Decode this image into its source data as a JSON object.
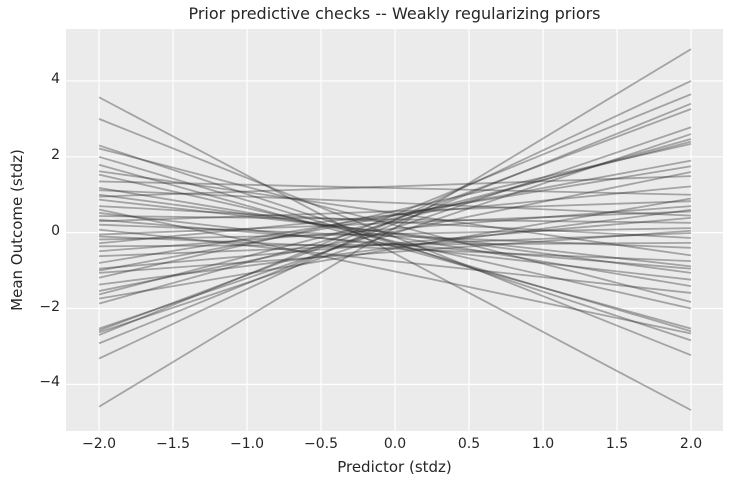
{
  "chart_data": {
    "type": "line",
    "title": "Prior predictive checks -- Weakly regularizing priors",
    "xlabel": "Predictor (stdz)",
    "ylabel": "Mean Outcome (stdz)",
    "xlim": [
      -2.223,
      2.216
    ],
    "ylim": [
      -5.23,
      5.37
    ],
    "grid": true,
    "legend": false,
    "xticks": {
      "values": [
        -2.0,
        -1.5,
        -1.0,
        -0.5,
        0.0,
        0.5,
        1.0,
        1.5,
        2.0
      ],
      "labels": [
        "−2.0",
        "−1.5",
        "−1.0",
        "−0.5",
        "0.0",
        "0.5",
        "1.0",
        "1.5",
        "2.0"
      ]
    },
    "yticks": {
      "values": [
        4,
        2,
        0,
        -2,
        -4
      ],
      "labels": [
        "4",
        "2",
        "0",
        "−2",
        "−4"
      ]
    },
    "lines_x": [
      -2,
      2
    ],
    "lines": [
      [
        3.57,
        -4.68
      ],
      [
        3.0,
        -3.23
      ],
      [
        2.3,
        -2.84
      ],
      [
        2.22,
        -1.83
      ],
      [
        2.0,
        -2.6
      ],
      [
        1.79,
        -2.53
      ],
      [
        1.62,
        -0.6
      ],
      [
        1.53,
        -2.0
      ],
      [
        1.35,
        1.0
      ],
      [
        1.18,
        -1.41
      ],
      [
        1.12,
        0.45
      ],
      [
        1.0,
        -1.06
      ],
      [
        0.95,
        1.49
      ],
      [
        0.87,
        -0.89
      ],
      [
        0.7,
        -0.14
      ],
      [
        0.61,
        -2.66
      ],
      [
        0.52,
        -1.24
      ],
      [
        0.44,
        0.26
      ],
      [
        0.34,
        -0.95
      ],
      [
        0.3,
        0.83
      ],
      [
        0.21,
        -0.4
      ],
      [
        0.08,
        -1.59
      ],
      [
        -0.05,
        0.56
      ],
      [
        -0.1,
        -0.75
      ],
      [
        -0.18,
        0.12
      ],
      [
        -0.28,
        1.22
      ],
      [
        -0.36,
        -0.27
      ],
      [
        -0.49,
        0.7
      ],
      [
        -0.62,
        -0.01
      ],
      [
        -0.8,
        1.75
      ],
      [
        -0.95,
        0.39
      ],
      [
        -1.0,
        1.9
      ],
      [
        -1.06,
        0.05
      ],
      [
        -1.19,
        2.34
      ],
      [
        -1.37,
        0.6
      ],
      [
        -1.54,
        1.6
      ],
      [
        -1.63,
        2.4
      ],
      [
        -1.74,
        0.9
      ],
      [
        -1.87,
        2.47
      ],
      [
        -2.53,
        2.78
      ],
      [
        -2.58,
        3.26
      ],
      [
        -2.63,
        2.6
      ],
      [
        -2.7,
        3.65
      ],
      [
        -2.92,
        3.4
      ],
      [
        -3.32,
        4.0
      ],
      [
        -4.59,
        4.84
      ]
    ],
    "styles": {
      "figure_bg": "#ffffff",
      "axes_bg": "#ebebeb",
      "grid_color": "#ffffff",
      "line_color": "#303030",
      "line_alpha": 0.38,
      "line_width": 1.8,
      "text_color": "#262626"
    }
  }
}
